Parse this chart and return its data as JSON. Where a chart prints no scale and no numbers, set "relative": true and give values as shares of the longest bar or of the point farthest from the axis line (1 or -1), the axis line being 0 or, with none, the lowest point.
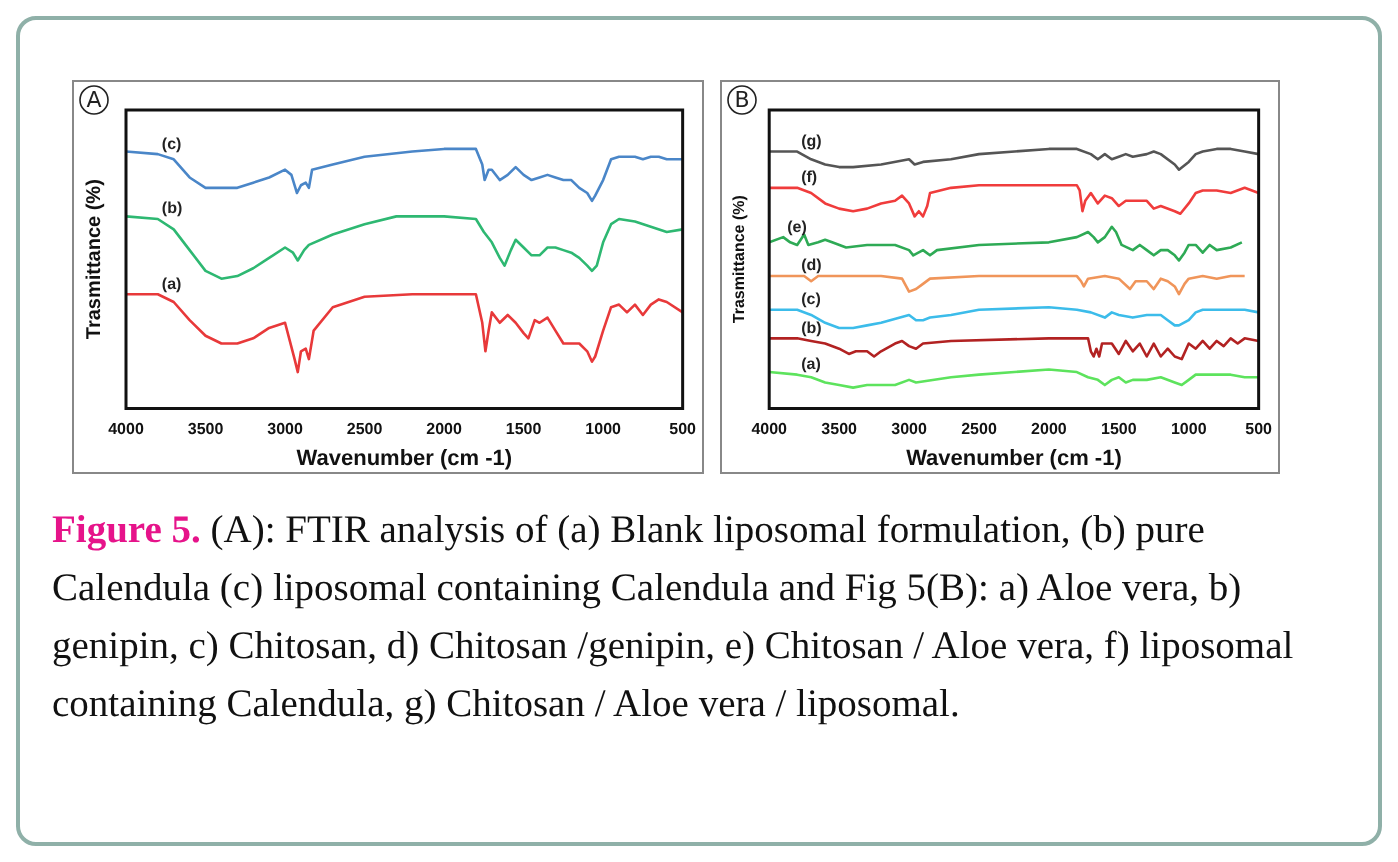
{
  "chart_data": [
    {
      "type": "line",
      "title": "A",
      "xlabel": "Wavenumber (cm -1)",
      "ylabel": "Trasmittance (%)",
      "relative": true,
      "xlim": [
        4000,
        500
      ],
      "xticks": [
        4000,
        3500,
        3000,
        2500,
        2000,
        1500,
        1000,
        500
      ],
      "grid": false,
      "legend": false,
      "marker": "none",
      "line_style": "solid",
      "annotations": [
        "Figure 5.",
        "(A): FTIR analysis of (a) Blank liposomal formulation, (b) pure Calendula (c) liposomal containing Calendula and Fig 5(B): a) Aloe vera, b) genipin, c) Chitosan, d) Chitosan /genipin, e) Chitosan / Aloe vera, f) liposomal containing Calendula, g) Chitosan / Aloe vera / liposomal."
      ],
      "series": [
        {
          "name": "(c)",
          "color": "#4a86c8",
          "x": [
            4000,
            3800,
            3700,
            3600,
            3500,
            3400,
            3300,
            3200,
            3100,
            3000,
            2960,
            2925,
            2900,
            2870,
            2850,
            2830,
            2700,
            2500,
            2200,
            2000,
            1800,
            1760,
            1745,
            1720,
            1700,
            1650,
            1600,
            1550,
            1500,
            1450,
            1400,
            1350,
            1300,
            1250,
            1200,
            1150,
            1100,
            1070,
            1050,
            1000,
            950,
            900,
            850,
            800,
            750,
            700,
            650,
            600,
            500
          ],
          "values": [
            0.99,
            0.98,
            0.96,
            0.89,
            0.85,
            0.85,
            0.85,
            0.87,
            0.89,
            0.92,
            0.9,
            0.83,
            0.86,
            0.87,
            0.85,
            0.92,
            0.94,
            0.97,
            0.99,
            1.0,
            1.0,
            0.94,
            0.88,
            0.92,
            0.92,
            0.88,
            0.9,
            0.93,
            0.9,
            0.88,
            0.89,
            0.9,
            0.89,
            0.88,
            0.88,
            0.85,
            0.83,
            0.8,
            0.82,
            0.88,
            0.96,
            0.97,
            0.97,
            0.97,
            0.96,
            0.97,
            0.97,
            0.96,
            0.96
          ]
        },
        {
          "name": "(b)",
          "color": "#2eb872",
          "x": [
            4000,
            3800,
            3700,
            3600,
            3500,
            3400,
            3300,
            3200,
            3100,
            3000,
            2950,
            2920,
            2880,
            2850,
            2700,
            2500,
            2300,
            2000,
            1800,
            1750,
            1700,
            1650,
            1620,
            1580,
            1550,
            1500,
            1450,
            1400,
            1350,
            1300,
            1250,
            1200,
            1150,
            1100,
            1070,
            1040,
            1000,
            950,
            900,
            800,
            700,
            600,
            500
          ],
          "values": [
            0.74,
            0.73,
            0.69,
            0.61,
            0.53,
            0.5,
            0.51,
            0.54,
            0.58,
            0.62,
            0.6,
            0.57,
            0.61,
            0.63,
            0.67,
            0.71,
            0.74,
            0.74,
            0.73,
            0.68,
            0.64,
            0.58,
            0.55,
            0.61,
            0.65,
            0.62,
            0.59,
            0.59,
            0.62,
            0.62,
            0.61,
            0.6,
            0.58,
            0.55,
            0.53,
            0.55,
            0.64,
            0.71,
            0.73,
            0.72,
            0.7,
            0.68,
            0.69
          ]
        },
        {
          "name": "(a)",
          "color": "#e8393a",
          "x": [
            4000,
            3800,
            3700,
            3600,
            3500,
            3400,
            3300,
            3200,
            3100,
            3000,
            2970,
            2940,
            2920,
            2900,
            2870,
            2850,
            2820,
            2700,
            2500,
            2200,
            2000,
            1800,
            1760,
            1740,
            1720,
            1700,
            1650,
            1600,
            1550,
            1500,
            1470,
            1430,
            1400,
            1350,
            1300,
            1250,
            1200,
            1150,
            1100,
            1070,
            1050,
            1000,
            950,
            900,
            850,
            800,
            750,
            700,
            650,
            600,
            500
          ],
          "values": [
            0.44,
            0.44,
            0.41,
            0.34,
            0.28,
            0.25,
            0.25,
            0.27,
            0.31,
            0.33,
            0.26,
            0.19,
            0.14,
            0.22,
            0.23,
            0.19,
            0.3,
            0.39,
            0.43,
            0.44,
            0.44,
            0.44,
            0.33,
            0.22,
            0.3,
            0.37,
            0.33,
            0.36,
            0.33,
            0.29,
            0.27,
            0.34,
            0.33,
            0.35,
            0.3,
            0.25,
            0.25,
            0.25,
            0.22,
            0.18,
            0.2,
            0.3,
            0.39,
            0.4,
            0.37,
            0.4,
            0.36,
            0.4,
            0.42,
            0.41,
            0.37
          ]
        }
      ]
    },
    {
      "type": "line",
      "title": "B",
      "xlabel": "Wavenumber (cm -1)",
      "ylabel": "Trasmittance (%)",
      "relative": true,
      "xlim": [
        4000,
        500
      ],
      "xticks": [
        4000,
        3500,
        3000,
        2500,
        2000,
        1500,
        1000,
        500
      ],
      "grid": false,
      "legend": false,
      "marker": "none",
      "line_style": "solid",
      "series": [
        {
          "name": "(g)",
          "color": "#555555",
          "x": [
            4000,
            3800,
            3700,
            3600,
            3500,
            3400,
            3200,
            3000,
            2960,
            2900,
            2700,
            2500,
            2000,
            1800,
            1700,
            1650,
            1600,
            1550,
            1500,
            1450,
            1400,
            1300,
            1250,
            1200,
            1100,
            1070,
            1000,
            950,
            900,
            800,
            700,
            600,
            500
          ],
          "values": [
            0.99,
            0.99,
            0.96,
            0.94,
            0.93,
            0.93,
            0.94,
            0.96,
            0.94,
            0.95,
            0.96,
            0.98,
            1.0,
            1.0,
            0.98,
            0.96,
            0.98,
            0.96,
            0.97,
            0.98,
            0.97,
            0.98,
            0.99,
            0.98,
            0.94,
            0.92,
            0.95,
            0.98,
            0.99,
            1.0,
            1.0,
            0.99,
            0.98
          ]
        },
        {
          "name": "(f)",
          "color": "#f03c3c",
          "x": [
            4000,
            3800,
            3700,
            3600,
            3500,
            3400,
            3300,
            3200,
            3100,
            3050,
            3000,
            2960,
            2930,
            2900,
            2870,
            2850,
            2700,
            2500,
            2000,
            1800,
            1780,
            1760,
            1740,
            1700,
            1650,
            1600,
            1550,
            1500,
            1450,
            1400,
            1300,
            1250,
            1200,
            1100,
            1060,
            1000,
            950,
            900,
            800,
            700,
            600,
            500
          ],
          "values": [
            0.85,
            0.85,
            0.83,
            0.79,
            0.77,
            0.76,
            0.77,
            0.79,
            0.8,
            0.82,
            0.79,
            0.74,
            0.76,
            0.74,
            0.78,
            0.83,
            0.85,
            0.86,
            0.86,
            0.86,
            0.84,
            0.76,
            0.8,
            0.83,
            0.79,
            0.82,
            0.81,
            0.78,
            0.8,
            0.8,
            0.8,
            0.77,
            0.78,
            0.76,
            0.75,
            0.79,
            0.83,
            0.84,
            0.84,
            0.83,
            0.85,
            0.83
          ]
        },
        {
          "name": "(e)",
          "color": "#2eaa55",
          "x": [
            4000,
            3900,
            3850,
            3800,
            3750,
            3720,
            3650,
            3600,
            3550,
            3450,
            3300,
            3100,
            3000,
            2970,
            2900,
            2850,
            2800,
            2500,
            2000,
            1800,
            1720,
            1680,
            1650,
            1600,
            1550,
            1520,
            1480,
            1400,
            1350,
            1300,
            1250,
            1200,
            1150,
            1100,
            1070,
            1030,
            1000,
            950,
            900,
            850,
            800,
            700,
            620
          ],
          "values": [
            0.64,
            0.66,
            0.64,
            0.63,
            0.67,
            0.63,
            0.64,
            0.65,
            0.64,
            0.62,
            0.63,
            0.63,
            0.61,
            0.59,
            0.61,
            0.59,
            0.61,
            0.63,
            0.64,
            0.66,
            0.68,
            0.66,
            0.64,
            0.66,
            0.7,
            0.68,
            0.63,
            0.61,
            0.63,
            0.61,
            0.59,
            0.61,
            0.61,
            0.59,
            0.57,
            0.6,
            0.63,
            0.63,
            0.6,
            0.63,
            0.61,
            0.62,
            0.64
          ]
        },
        {
          "name": "(d)",
          "color": "#f0955a",
          "x": [
            4000,
            3800,
            3750,
            3700,
            3650,
            3200,
            3050,
            3000,
            2950,
            2900,
            2850,
            2500,
            2000,
            1800,
            1770,
            1750,
            1720,
            1600,
            1500,
            1420,
            1380,
            1300,
            1250,
            1200,
            1150,
            1100,
            1070,
            1030,
            1000,
            900,
            800,
            700,
            600
          ],
          "values": [
            0.51,
            0.51,
            0.51,
            0.49,
            0.51,
            0.51,
            0.5,
            0.45,
            0.46,
            0.48,
            0.5,
            0.51,
            0.51,
            0.51,
            0.49,
            0.47,
            0.5,
            0.51,
            0.5,
            0.46,
            0.49,
            0.49,
            0.46,
            0.5,
            0.49,
            0.47,
            0.44,
            0.48,
            0.5,
            0.51,
            0.5,
            0.51,
            0.51
          ]
        },
        {
          "name": "(c)",
          "color": "#3cbcea",
          "x": [
            4000,
            3800,
            3700,
            3600,
            3500,
            3400,
            3300,
            3200,
            3000,
            2950,
            2900,
            2850,
            2700,
            2500,
            2000,
            1800,
            1700,
            1600,
            1550,
            1500,
            1400,
            1300,
            1200,
            1150,
            1100,
            1070,
            1000,
            950,
            900,
            800,
            700,
            600,
            500
          ],
          "values": [
            0.38,
            0.38,
            0.36,
            0.33,
            0.31,
            0.31,
            0.32,
            0.33,
            0.36,
            0.34,
            0.34,
            0.35,
            0.36,
            0.38,
            0.39,
            0.38,
            0.37,
            0.35,
            0.37,
            0.36,
            0.35,
            0.36,
            0.36,
            0.34,
            0.32,
            0.32,
            0.34,
            0.37,
            0.38,
            0.38,
            0.38,
            0.38,
            0.37
          ]
        },
        {
          "name": "(b)",
          "color": "#b22222",
          "x": [
            4000,
            3800,
            3700,
            3600,
            3500,
            3430,
            3380,
            3300,
            3250,
            3200,
            3100,
            3050,
            3000,
            2950,
            2900,
            2700,
            2000,
            1720,
            1700,
            1680,
            1660,
            1640,
            1620,
            1550,
            1500,
            1450,
            1400,
            1350,
            1300,
            1250,
            1200,
            1150,
            1100,
            1050,
            1000,
            950,
            900,
            850,
            800,
            750,
            700,
            650,
            600,
            500
          ],
          "values": [
            0.27,
            0.27,
            0.26,
            0.25,
            0.23,
            0.21,
            0.22,
            0.22,
            0.2,
            0.22,
            0.25,
            0.26,
            0.24,
            0.23,
            0.25,
            0.26,
            0.27,
            0.27,
            0.22,
            0.2,
            0.23,
            0.2,
            0.25,
            0.25,
            0.21,
            0.26,
            0.22,
            0.25,
            0.2,
            0.25,
            0.2,
            0.23,
            0.2,
            0.19,
            0.25,
            0.23,
            0.26,
            0.23,
            0.26,
            0.24,
            0.27,
            0.25,
            0.27,
            0.26
          ]
        },
        {
          "name": "(a)",
          "color": "#5de35d",
          "x": [
            4000,
            3800,
            3700,
            3600,
            3500,
            3400,
            3300,
            3100,
            3000,
            2950,
            2700,
            2500,
            2000,
            1800,
            1720,
            1650,
            1600,
            1550,
            1500,
            1450,
            1400,
            1300,
            1200,
            1100,
            1050,
            1000,
            950,
            900,
            800,
            700,
            600,
            500
          ],
          "values": [
            0.14,
            0.13,
            0.12,
            0.1,
            0.09,
            0.08,
            0.09,
            0.09,
            0.11,
            0.1,
            0.12,
            0.13,
            0.15,
            0.14,
            0.12,
            0.11,
            0.09,
            0.11,
            0.12,
            0.1,
            0.11,
            0.11,
            0.12,
            0.1,
            0.09,
            0.11,
            0.13,
            0.13,
            0.13,
            0.13,
            0.12,
            0.12
          ]
        }
      ]
    }
  ]
}
